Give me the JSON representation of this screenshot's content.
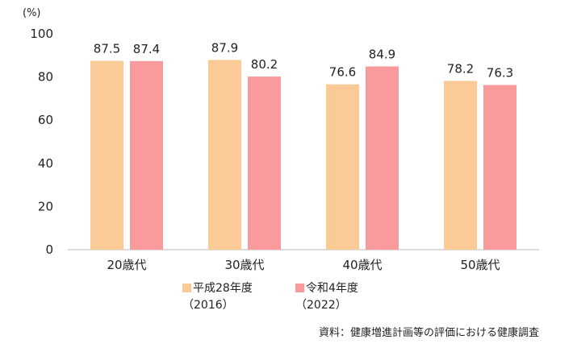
{
  "chart_data": {
    "type": "bar",
    "unit_label": "(%)",
    "categories": [
      "20歳代",
      "30歳代",
      "40歳代",
      "50歳代"
    ],
    "series": [
      {
        "name": "平成28年度",
        "name_sub": "（2016）",
        "color": "#FACB96",
        "values": [
          87.5,
          87.9,
          76.6,
          78.2
        ]
      },
      {
        "name": "令和4年度",
        "name_sub": "（2022）",
        "color": "#F99A9C",
        "values": [
          87.4,
          80.2,
          84.9,
          76.3
        ]
      }
    ],
    "ylim": [
      0,
      100
    ],
    "yticks": [
      0,
      20,
      40,
      60,
      80,
      100
    ],
    "legend_position": "bottom",
    "grid": false,
    "source": "資料：健康増進計画等の評価における健康調査"
  }
}
